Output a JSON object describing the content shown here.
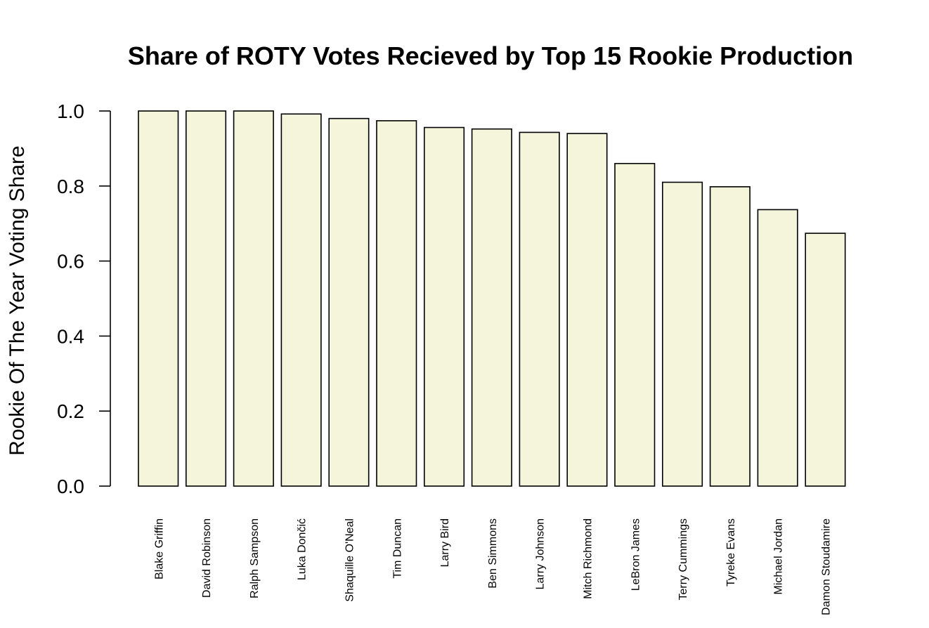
{
  "colors": {
    "bar_fill": "#f5f5dc",
    "bar_stroke": "#000000",
    "text": "#000000",
    "background": "#ffffff"
  },
  "chart_data": {
    "type": "bar",
    "title": "Share of ROTY Votes Recieved by Top 15 Rookie Production",
    "xlabel": "",
    "ylabel": "Rookie Of The Year Voting Share",
    "ylim": [
      0,
      1.0
    ],
    "yticks": [
      "0.0",
      "0.2",
      "0.4",
      "0.6",
      "0.8",
      "1.0"
    ],
    "ytick_values": [
      0,
      0.2,
      0.4,
      0.6,
      0.8,
      1.0
    ],
    "grid": false,
    "categories": [
      "Blake Griffin",
      "David Robinson",
      "Ralph Sampson",
      "Luka Dončić",
      "Shaquille O'Neal",
      "Tim Duncan",
      "Larry Bird",
      "Ben Simmons",
      "Larry Johnson",
      "Mitch Richmond",
      "LeBron James",
      "Terry Cummings",
      "Tyreke Evans",
      "Michael Jordan",
      "Damon Stoudamire"
    ],
    "values": [
      1.0,
      1.0,
      1.0,
      0.992,
      0.98,
      0.974,
      0.956,
      0.952,
      0.943,
      0.94,
      0.86,
      0.81,
      0.798,
      0.737,
      0.674
    ]
  }
}
